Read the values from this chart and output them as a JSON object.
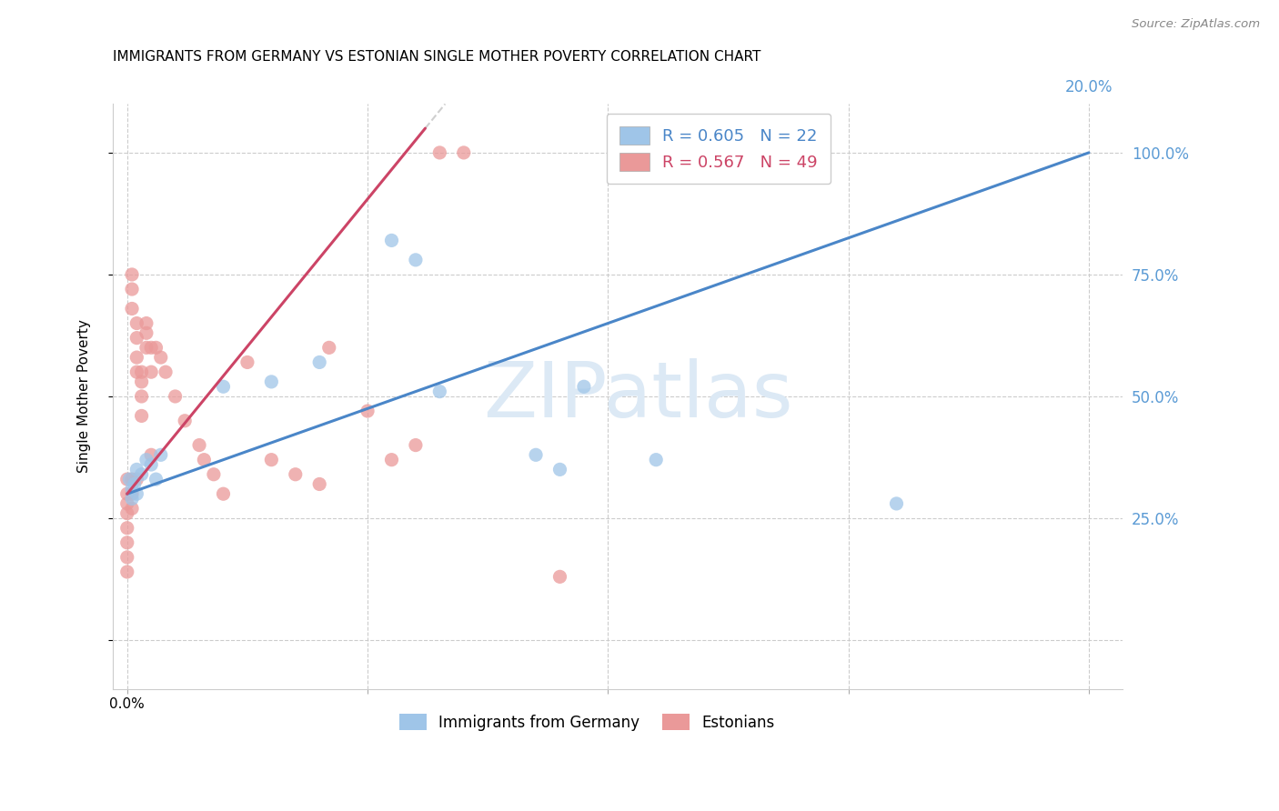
{
  "title": "IMMIGRANTS FROM GERMANY VS ESTONIAN SINGLE MOTHER POVERTY CORRELATION CHART",
  "source": "Source: ZipAtlas.com",
  "ylabel": "Single Mother Poverty",
  "blue_R": 0.605,
  "blue_N": 22,
  "pink_R": 0.567,
  "pink_N": 49,
  "blue_color": "#9fc5e8",
  "pink_color": "#ea9999",
  "blue_line_color": "#4a86c8",
  "pink_line_color": "#cc4466",
  "right_tick_color": "#5b9bd5",
  "watermark_color": "#dce9f5",
  "blue_x": [
    0.0005,
    0.001,
    0.001,
    0.0015,
    0.002,
    0.002,
    0.003,
    0.004,
    0.005,
    0.006,
    0.007,
    0.02,
    0.03,
    0.04,
    0.055,
    0.06,
    0.065,
    0.085,
    0.09,
    0.095,
    0.11,
    0.16
  ],
  "blue_y": [
    0.33,
    0.31,
    0.29,
    0.32,
    0.35,
    0.3,
    0.34,
    0.37,
    0.36,
    0.33,
    0.38,
    0.52,
    0.53,
    0.57,
    0.82,
    0.78,
    0.51,
    0.38,
    0.35,
    0.52,
    0.37,
    0.28
  ],
  "pink_x": [
    0.0,
    0.0,
    0.0,
    0.0,
    0.0,
    0.0,
    0.0,
    0.0,
    0.001,
    0.001,
    0.001,
    0.001,
    0.001,
    0.001,
    0.002,
    0.002,
    0.002,
    0.002,
    0.002,
    0.003,
    0.003,
    0.003,
    0.003,
    0.004,
    0.004,
    0.004,
    0.005,
    0.005,
    0.005,
    0.006,
    0.007,
    0.008,
    0.01,
    0.012,
    0.015,
    0.016,
    0.018,
    0.02,
    0.025,
    0.03,
    0.035,
    0.04,
    0.042,
    0.05,
    0.055,
    0.06,
    0.065,
    0.07,
    0.09
  ],
  "pink_y": [
    0.33,
    0.3,
    0.28,
    0.26,
    0.23,
    0.2,
    0.17,
    0.14,
    0.33,
    0.3,
    0.27,
    0.68,
    0.72,
    0.75,
    0.33,
    0.55,
    0.58,
    0.62,
    0.65,
    0.46,
    0.5,
    0.53,
    0.55,
    0.6,
    0.63,
    0.65,
    0.38,
    0.55,
    0.6,
    0.6,
    0.58,
    0.55,
    0.5,
    0.45,
    0.4,
    0.37,
    0.34,
    0.3,
    0.57,
    0.37,
    0.34,
    0.32,
    0.6,
    0.47,
    0.37,
    0.4,
    1.0,
    1.0,
    0.13
  ],
  "xlim": [
    -0.003,
    0.207
  ],
  "ylim": [
    -0.1,
    1.1
  ],
  "yticks": [
    0.0,
    0.25,
    0.5,
    0.75,
    1.0
  ],
  "xticks": [
    0.0,
    0.05,
    0.1,
    0.15,
    0.2
  ],
  "blue_line_x": [
    0.0,
    0.2
  ],
  "blue_line_y": [
    0.3,
    1.0
  ],
  "pink_line_x": [
    0.0,
    0.062
  ],
  "pink_line_y": [
    0.3,
    1.05
  ]
}
